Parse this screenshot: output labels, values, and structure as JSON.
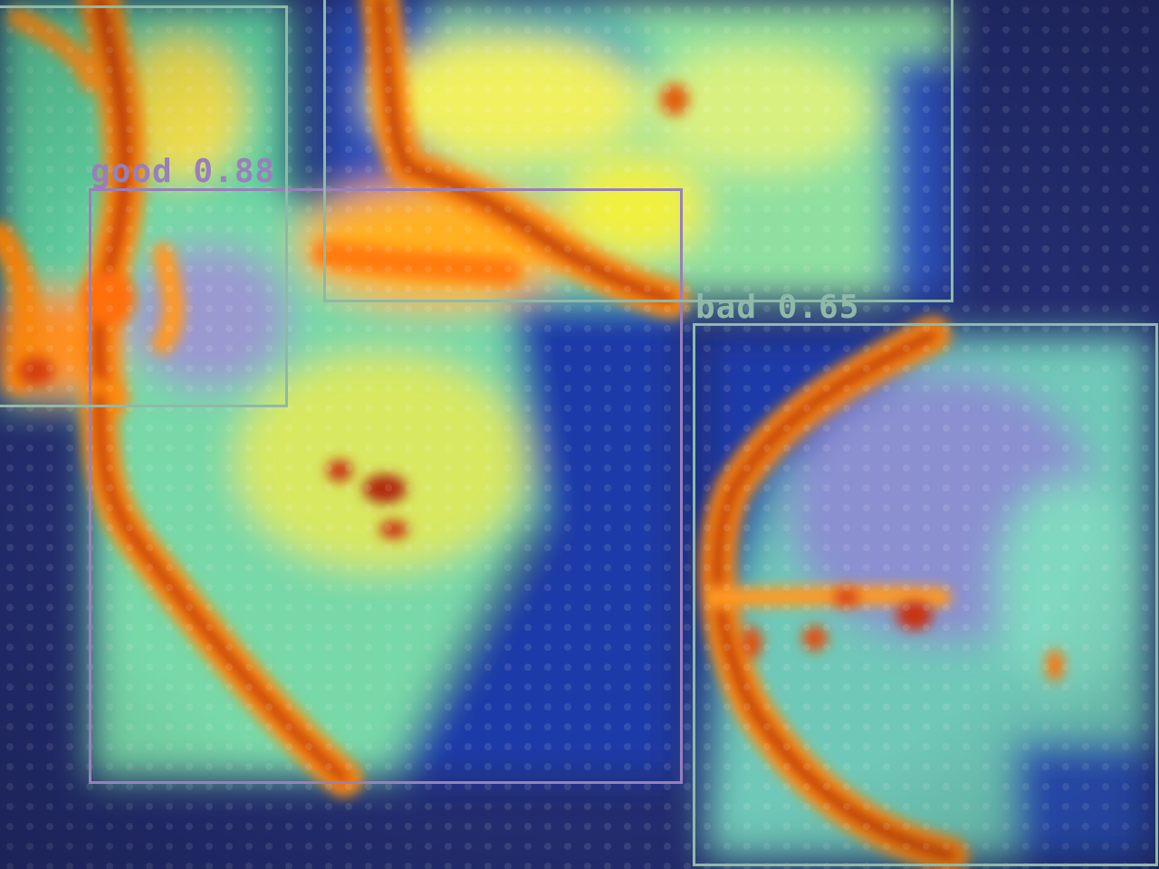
{
  "image": {
    "description_type": "heatmap-overlay-with-detections",
    "colormap": "jet",
    "background_color": "#232c6e"
  },
  "detections": [
    {
      "name": "detection-good",
      "label": "good 0.88",
      "class": "good",
      "score": 0.88,
      "color": "#9a7fba"
    },
    {
      "name": "detection-bad",
      "label": "bad 0.65",
      "class": "bad",
      "score": 0.65,
      "color": "#8fb9a8"
    },
    {
      "name": "detection-unlabeled-top-left",
      "label": "",
      "class": "",
      "score": null,
      "color": "#8fb9a8"
    },
    {
      "name": "detection-unlabeled-top-center",
      "label": "",
      "class": "",
      "score": null,
      "color": "#8fb9a8"
    }
  ]
}
